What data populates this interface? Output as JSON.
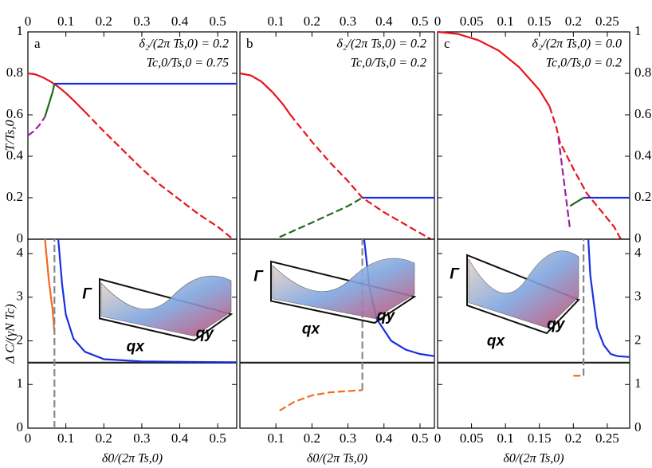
{
  "chart_data": [
    {
      "type": "line",
      "annotations": [
        "a",
        "δ₂/(2π Ts,0) = 0.2",
        "Tc,0/Ts,0 = 0.75"
      ],
      "ylabel": "T/Ts,0",
      "xlim": [
        0,
        0.55
      ],
      "xticks": [
        0,
        0.1,
        0.2,
        0.3,
        0.4,
        0.5
      ],
      "ylim": [
        0,
        1
      ],
      "yticks": [
        0,
        0.2,
        0.4,
        0.6,
        0.8,
        1
      ],
      "ytick_side": "left",
      "xtick_side": "top",
      "series": [
        {
          "color": "#e8141c",
          "dash": false,
          "x": [
            0,
            0.02,
            0.04,
            0.06,
            0.08,
            0.1,
            0.12,
            0.15
          ],
          "values": [
            0.8,
            0.795,
            0.78,
            0.76,
            0.735,
            0.705,
            0.67,
            0.615
          ]
        },
        {
          "color": "#e8141c",
          "dash": true,
          "x": [
            0.15,
            0.2,
            0.25,
            0.3,
            0.35,
            0.4,
            0.45,
            0.5,
            0.54
          ],
          "values": [
            0.615,
            0.52,
            0.43,
            0.34,
            0.26,
            0.19,
            0.12,
            0.06,
            0
          ]
        },
        {
          "color": "#1a2ee0",
          "dash": false,
          "x": [
            0.07,
            0.55
          ],
          "values": [
            0.75,
            0.75
          ]
        },
        {
          "color": "#1e6b1e",
          "dash": false,
          "x": [
            0.045,
            0.055,
            0.065,
            0.07
          ],
          "values": [
            0.59,
            0.65,
            0.71,
            0.75
          ]
        },
        {
          "color": "#a020a0",
          "dash": true,
          "x": [
            0,
            0.015,
            0.03,
            0.045
          ],
          "values": [
            0.5,
            0.52,
            0.55,
            0.59
          ]
        }
      ]
    },
    {
      "type": "line",
      "annotations": [
        "b",
        "δ₂/(2π Ts,0) = 0.2",
        "Tc,0/Ts,0 = 0.2"
      ],
      "xlim": [
        0,
        0.54
      ],
      "xticks": [
        0.1,
        0.2,
        0.3,
        0.4,
        0.5
      ],
      "ylim": [
        0,
        1
      ],
      "xtick_side": "top",
      "series": [
        {
          "color": "#e8141c",
          "dash": false,
          "x": [
            0,
            0.03,
            0.06,
            0.09,
            0.12,
            0.14
          ],
          "values": [
            0.8,
            0.79,
            0.76,
            0.71,
            0.65,
            0.6
          ]
        },
        {
          "color": "#e8141c",
          "dash": true,
          "x": [
            0.14,
            0.2,
            0.25,
            0.3,
            0.34,
            0.4,
            0.45,
            0.5,
            0.53
          ],
          "values": [
            0.6,
            0.47,
            0.37,
            0.28,
            0.2,
            0.13,
            0.08,
            0.03,
            0
          ]
        },
        {
          "color": "#1a2ee0",
          "dash": false,
          "x": [
            0.34,
            0.54
          ],
          "values": [
            0.2,
            0.2
          ]
        },
        {
          "color": "#1e6b1e",
          "dash": true,
          "x": [
            0.11,
            0.2,
            0.3,
            0.34
          ],
          "values": [
            0.01,
            0.08,
            0.16,
            0.2
          ]
        }
      ]
    },
    {
      "type": "line",
      "annotations": [
        "c",
        "δ₂/(2π Ts,0) = 0.0",
        "Tc,0/Ts,0 = 0.2"
      ],
      "xlim": [
        0,
        0.283
      ],
      "xticks": [
        0,
        0.05,
        0.1,
        0.15,
        0.2,
        0.25
      ],
      "ylim": [
        0,
        1
      ],
      "yticks": [
        0,
        0.2,
        0.4,
        0.6,
        0.8,
        1
      ],
      "ytick_side": "right",
      "xtick_side": "top",
      "series": [
        {
          "color": "#e8141c",
          "dash": false,
          "x": [
            0,
            0.03,
            0.06,
            0.09,
            0.12,
            0.15,
            0.165
          ],
          "values": [
            1,
            0.99,
            0.96,
            0.91,
            0.83,
            0.72,
            0.64
          ]
        },
        {
          "color": "#e8141c",
          "dash": true,
          "x": [
            0.165,
            0.175,
            0.18,
            0.2,
            0.22,
            0.24,
            0.26,
            0.27
          ],
          "values": [
            0.64,
            0.54,
            0.47,
            0.34,
            0.22,
            0.14,
            0.06,
            0
          ]
        },
        {
          "color": "#a020a0",
          "dash": true,
          "x": [
            0.178,
            0.195
          ],
          "values": [
            0.49,
            0.05
          ]
        },
        {
          "color": "#1e6b1e",
          "dash": false,
          "x": [
            0.195,
            0.215
          ],
          "values": [
            0.16,
            0.2
          ]
        },
        {
          "color": "#1a2ee0",
          "dash": false,
          "x": [
            0.215,
            0.283
          ],
          "values": [
            0.2,
            0.2
          ]
        }
      ]
    },
    {
      "type": "line",
      "ylabel": "Δ C/(γN Tc)",
      "xlabel": "δ0/(2π Ts,0)",
      "inset_labels": [
        "Γ",
        "qx",
        "qy"
      ],
      "xlim": [
        0,
        0.55
      ],
      "xticks": [
        0,
        0.1,
        0.2,
        0.3,
        0.4,
        0.5
      ],
      "ylim": [
        0,
        4.33
      ],
      "yticks": [
        0,
        1,
        2,
        3,
        4
      ],
      "ytick_side": "left",
      "xtick_side": "bottom",
      "series": [
        {
          "color": "#222222",
          "dash": false,
          "x": [
            0,
            0.55
          ],
          "values": [
            1.5,
            1.5
          ]
        },
        {
          "color": "#f26a1e",
          "dash": false,
          "x": [
            0.045,
            0.055,
            0.065,
            0.07
          ],
          "values": [
            4.33,
            3.4,
            2.7,
            2.2
          ]
        },
        {
          "color": "#888888",
          "dash": true,
          "x": [
            0.07,
            0.07
          ],
          "values": [
            0,
            4.33
          ]
        },
        {
          "color": "#1a2ee0",
          "dash": false,
          "x": [
            0.08,
            0.09,
            0.1,
            0.12,
            0.15,
            0.2,
            0.3,
            0.4,
            0.55
          ],
          "values": [
            4.33,
            3.3,
            2.6,
            2.05,
            1.75,
            1.58,
            1.53,
            1.52,
            1.51
          ]
        }
      ]
    },
    {
      "type": "line",
      "xlabel": "δ0/(2π Ts,0)",
      "inset_labels": [
        "Γ",
        "qx",
        "qy"
      ],
      "xlim": [
        0,
        0.54
      ],
      "xticks": [
        0.1,
        0.2,
        0.3,
        0.4,
        0.5
      ],
      "ylim": [
        0,
        4.33
      ],
      "xtick_side": "bottom",
      "series": [
        {
          "color": "#222222",
          "dash": false,
          "x": [
            0,
            0.54
          ],
          "values": [
            1.5,
            1.5
          ]
        },
        {
          "color": "#f26a1e",
          "dash": true,
          "x": [
            0.11,
            0.15,
            0.2,
            0.25,
            0.3,
            0.34
          ],
          "values": [
            0.4,
            0.6,
            0.75,
            0.82,
            0.85,
            0.87
          ]
        },
        {
          "color": "#888888",
          "dash": true,
          "x": [
            0.34,
            0.34
          ],
          "values": [
            0.87,
            4.33
          ]
        },
        {
          "color": "#1a2ee0",
          "dash": false,
          "x": [
            0.345,
            0.36,
            0.38,
            0.42,
            0.46,
            0.5,
            0.54
          ],
          "values": [
            4.33,
            3.2,
            2.5,
            2.0,
            1.8,
            1.7,
            1.65
          ]
        }
      ]
    },
    {
      "type": "line",
      "xlabel": "δ0/(2π Ts,0)",
      "inset_labels": [
        "Γ",
        "qx",
        "qy"
      ],
      "xlim": [
        0,
        0.283
      ],
      "xticks": [
        0,
        0.05,
        0.1,
        0.15,
        0.2,
        0.25
      ],
      "ylim": [
        0,
        4.33
      ],
      "yticks": [
        0,
        1,
        2,
        3,
        4
      ],
      "ytick_side": "right",
      "xtick_side": "bottom",
      "series": [
        {
          "color": "#222222",
          "dash": false,
          "x": [
            0,
            0.283
          ],
          "values": [
            1.5,
            1.5
          ]
        },
        {
          "color": "#f26a1e",
          "dash": true,
          "x": [
            0.2,
            0.215
          ],
          "values": [
            1.2,
            1.2
          ]
        },
        {
          "color": "#888888",
          "dash": true,
          "x": [
            0.215,
            0.215
          ],
          "values": [
            1.2,
            4.33
          ]
        },
        {
          "color": "#1a2ee0",
          "dash": false,
          "x": [
            0.222,
            0.225,
            0.235,
            0.245,
            0.255,
            0.265,
            0.283
          ],
          "values": [
            4.33,
            3.5,
            2.3,
            1.9,
            1.7,
            1.65,
            1.63
          ]
        }
      ]
    }
  ]
}
